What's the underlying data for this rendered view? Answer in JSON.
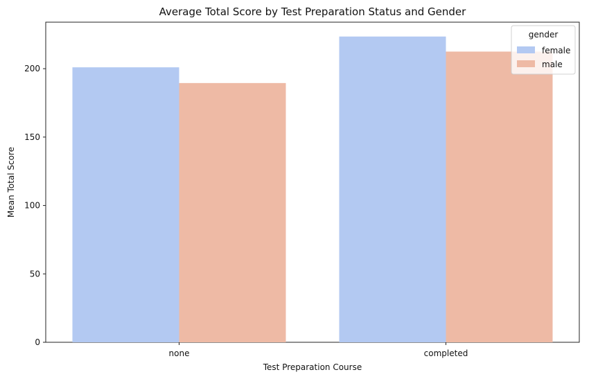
{
  "chart_data": {
    "type": "bar",
    "title": "Average Total Score by Test Preparation Status and Gender",
    "xlabel": "Test Preparation Course",
    "ylabel": "Mean Total Score",
    "categories": [
      "none",
      "completed"
    ],
    "series": [
      {
        "name": "female",
        "values": [
          201,
          223.5
        ],
        "color": "#b3c9f2"
      },
      {
        "name": "male",
        "values": [
          189.5,
          212.5
        ],
        "color": "#eebaa5"
      }
    ],
    "ylim": [
      0,
      234
    ],
    "yticks": [
      0,
      50,
      100,
      150,
      200
    ],
    "legend": {
      "title": "gender",
      "placement": "top-right"
    },
    "grid": false
  }
}
